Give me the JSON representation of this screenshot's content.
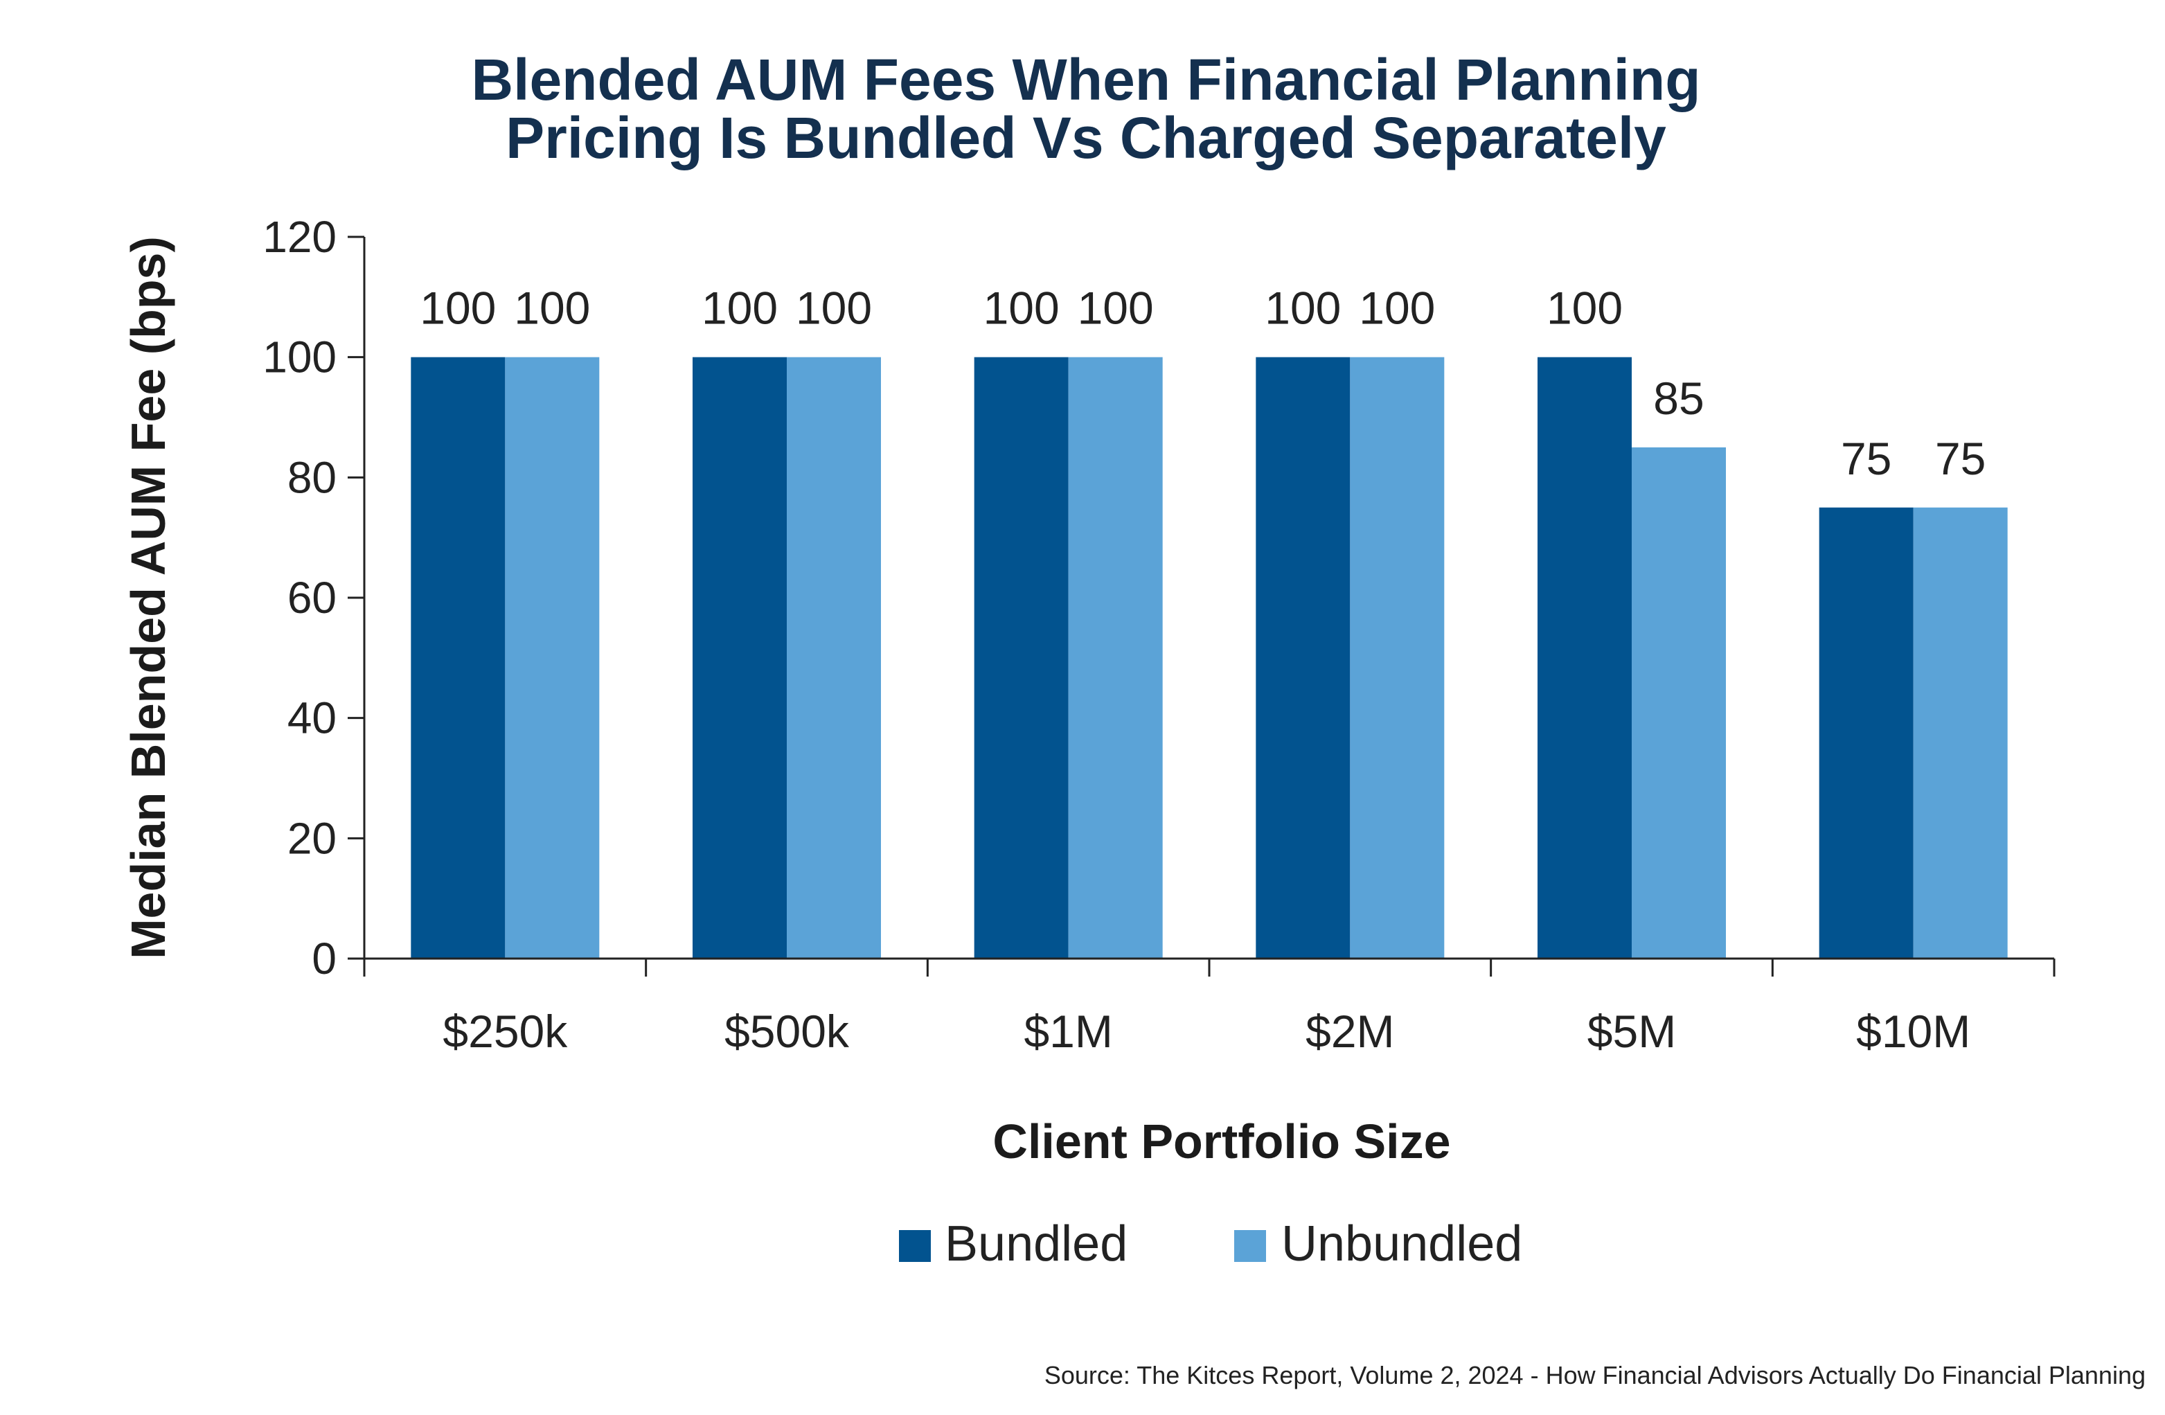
{
  "chart_data": {
    "type": "bar",
    "title": [
      "Blended AUM Fees When Financial Planning",
      "Pricing Is Bundled Vs Charged Separately"
    ],
    "xlabel": "Client Portfolio Size",
    "ylabel": "Median Blended AUM Fee (bps)",
    "ylim": [
      0,
      120
    ],
    "yticks": [
      0,
      20,
      40,
      60,
      80,
      100,
      120
    ],
    "categories": [
      "$250k",
      "$500k",
      "$1M",
      "$2M",
      "$5M",
      "$10M"
    ],
    "series": [
      {
        "name": "Bundled",
        "color": "#02538f",
        "values": [
          100,
          100,
          100,
          100,
          100,
          75
        ]
      },
      {
        "name": "Unbundled",
        "color": "#5ba3d7",
        "values": [
          100,
          100,
          100,
          100,
          85,
          75
        ]
      }
    ],
    "data_labels": true,
    "grid": false,
    "legend": "bottom-center",
    "source": "Source: The Kitces Report, Volume 2, 2024 - How Financial Advisors Actually Do Financial Planning"
  }
}
